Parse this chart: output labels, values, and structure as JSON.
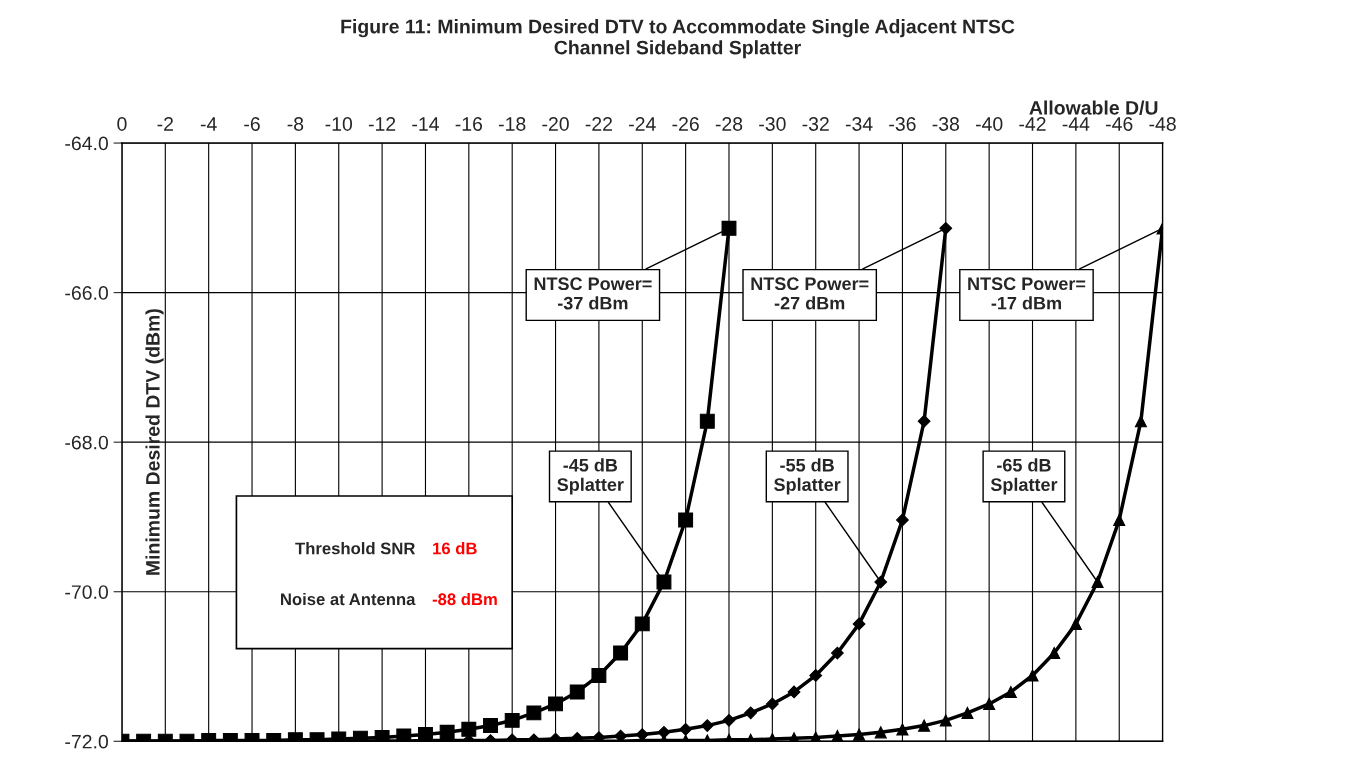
{
  "chart_data": {
    "type": "line",
    "title": "Figure 11: Minimum Desired DTV to Accommodate Single Adjacent NTSC\nChannel Sideband Splatter",
    "xlabel": "Allowable D/U",
    "ylabel": "Minimum Desired DTV (dBm)",
    "xlim": [
      0,
      -48
    ],
    "xticks": [
      0,
      -2,
      -4,
      -6,
      -8,
      -10,
      -12,
      -14,
      -16,
      -18,
      -20,
      -22,
      -24,
      -26,
      -28,
      -30,
      -32,
      -34,
      -36,
      -38,
      -40,
      -42,
      -44,
      -46,
      -48
    ],
    "ylim": [
      -72,
      -64
    ],
    "yticks": [
      {
        "value": -72,
        "label": "-72.0"
      },
      {
        "value": -70,
        "label": "-70.0"
      },
      {
        "value": -68,
        "label": "-68.0"
      },
      {
        "value": -66,
        "label": "-66.0"
      },
      {
        "value": -64,
        "label": "-64.0"
      }
    ],
    "grid": true,
    "legend": false,
    "line_style": "solid",
    "series": [
      {
        "color": "#000000",
        "marker": "square",
        "x": [
          0,
          -1,
          -2,
          -3,
          -4,
          -5,
          -6,
          -7,
          -8,
          -9,
          -10,
          -11,
          -12,
          -13,
          -14,
          -15,
          -16,
          -17,
          -18,
          -19,
          -20,
          -21,
          -22,
          -23,
          -24,
          -25,
          -26,
          -27,
          -28
        ],
        "values": [
          -72,
          -72,
          -72,
          -72,
          -71.99,
          -71.99,
          -71.99,
          -71.99,
          -71.98,
          -71.98,
          -71.97,
          -71.96,
          -71.95,
          -71.93,
          -71.91,
          -71.88,
          -71.84,
          -71.79,
          -71.72,
          -71.62,
          -71.5,
          -71.34,
          -71.12,
          -70.82,
          -70.43,
          -69.87,
          -69.04,
          -67.72,
          -65.14
        ]
      },
      {
        "color": "#000000",
        "marker": "diamond",
        "x": [
          0,
          -1,
          -2,
          -3,
          -4,
          -5,
          -6,
          -7,
          -8,
          -9,
          -10,
          -11,
          -12,
          -13,
          -14,
          -15,
          -16,
          -17,
          -18,
          -19,
          -20,
          -21,
          -22,
          -23,
          -24,
          -25,
          -26,
          -27,
          -28,
          -29,
          -30,
          -31,
          -32,
          -33,
          -34,
          -35,
          -36,
          -37,
          -38
        ],
        "values": [
          -72,
          -72,
          -72,
          -72,
          -72,
          -72,
          -72,
          -72,
          -72,
          -72,
          -72,
          -72,
          -72,
          -72,
          -71.99,
          -71.99,
          -71.99,
          -71.99,
          -71.98,
          -71.98,
          -71.97,
          -71.96,
          -71.95,
          -71.93,
          -71.91,
          -71.88,
          -71.84,
          -71.79,
          -71.72,
          -71.62,
          -71.5,
          -71.34,
          -71.12,
          -70.82,
          -70.43,
          -69.87,
          -69.04,
          -67.72,
          -65.14
        ]
      },
      {
        "color": "#000000",
        "marker": "triangle",
        "x": [
          0,
          -1,
          -2,
          -3,
          -4,
          -5,
          -6,
          -7,
          -8,
          -9,
          -10,
          -11,
          -12,
          -13,
          -14,
          -15,
          -16,
          -17,
          -18,
          -19,
          -20,
          -21,
          -22,
          -23,
          -24,
          -25,
          -26,
          -27,
          -28,
          -29,
          -30,
          -31,
          -32,
          -33,
          -34,
          -35,
          -36,
          -37,
          -38,
          -39,
          -40,
          -41,
          -42,
          -43,
          -44,
          -45,
          -46,
          -47,
          -48
        ],
        "values": [
          -72,
          -72,
          -72,
          -72,
          -72,
          -72,
          -72,
          -72,
          -72,
          -72,
          -72,
          -72,
          -72,
          -72,
          -72,
          -72,
          -72,
          -72,
          -72,
          -72,
          -72,
          -72,
          -72,
          -72,
          -71.99,
          -71.99,
          -71.99,
          -71.99,
          -71.98,
          -71.98,
          -71.97,
          -71.96,
          -71.95,
          -71.93,
          -71.91,
          -71.88,
          -71.84,
          -71.79,
          -71.72,
          -71.62,
          -71.5,
          -71.34,
          -71.12,
          -70.82,
          -70.43,
          -69.87,
          -69.04,
          -67.72,
          -65.14
        ]
      }
    ],
    "annotations": [
      {
        "text": "NTSC Power=\n-37 dBm",
        "x": -28,
        "y": -65.14
      },
      {
        "text": "NTSC Power=\n-27 dBm",
        "x": -38,
        "y": -65.14
      },
      {
        "text": "NTSC Power=\n-17 dBm",
        "x": -48,
        "y": -65.14
      },
      {
        "text": "-45 dB\nSplatter",
        "x": -25,
        "y": -69.87
      },
      {
        "text": "-55 dB\nSplatter",
        "x": -35,
        "y": -69.87
      },
      {
        "text": "-65 dB\nSplatter",
        "x": -45,
        "y": -69.87
      },
      "Threshold SNR",
      "16 dB",
      "Noise at Antenna",
      "-88 dBm"
    ]
  }
}
